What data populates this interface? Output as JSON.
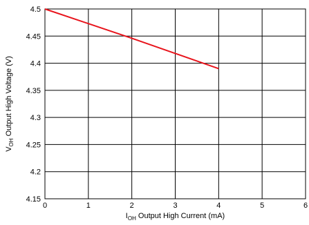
{
  "chart_data": {
    "type": "line",
    "xlabel": {
      "main": "I",
      "sub": "OH",
      "rest": " Output High Current (mA)"
    },
    "ylabel": {
      "main": "V",
      "sub": "OH",
      "rest": " Output High Voltage (V)"
    },
    "xlim": [
      0,
      6
    ],
    "ylim": [
      4.15,
      4.5
    ],
    "x_ticks": [
      0,
      1,
      2,
      3,
      4,
      5,
      6
    ],
    "y_ticks": [
      4.15,
      4.2,
      4.25,
      4.3,
      4.35,
      4.4,
      4.45,
      4.5
    ],
    "x_tick_labels": [
      "0",
      "1",
      "2",
      "3",
      "4",
      "5",
      "6"
    ],
    "y_tick_labels": [
      "4.15",
      "4.2",
      "4.25",
      "4.3",
      "4.35",
      "4.4",
      "4.45",
      "4.5"
    ],
    "grid": true,
    "series": [
      {
        "color": "#e8141c",
        "x": [
          0,
          1,
          2,
          3,
          4
        ],
        "y": [
          4.5,
          4.473,
          4.446,
          4.418,
          4.39
        ]
      }
    ]
  }
}
